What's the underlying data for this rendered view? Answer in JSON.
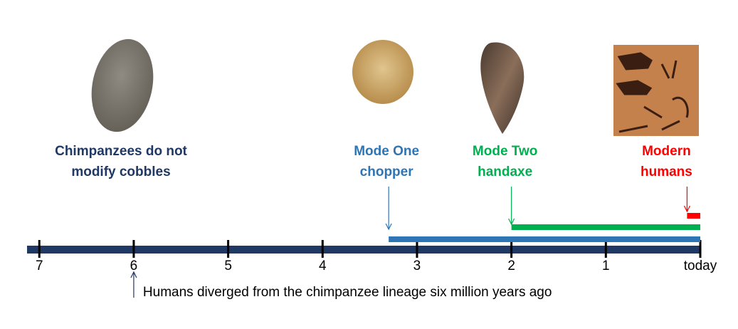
{
  "chart_data": {
    "type": "timeline",
    "xlim": [
      7.13,
      0
    ],
    "xticks": [
      7,
      6,
      5,
      4,
      3,
      2,
      1,
      {
        "value": 0,
        "label": "today"
      }
    ],
    "axis_color": "#1f3864",
    "note": {
      "label": [
        "Chimpanzees do not",
        "modify cobbles"
      ],
      "color": "#1f3864"
    },
    "periods": [
      {
        "label": [
          "Mode One",
          "chopper"
        ],
        "color": "#2e75b6",
        "start": 3.3,
        "end": 0
      },
      {
        "label": [
          "Mode Two",
          "handaxe"
        ],
        "color": "#00b050",
        "start": 2,
        "end": 0
      },
      {
        "label": [
          "Modern",
          "humans"
        ],
        "color": "#ff0000",
        "start": 0.14,
        "end": 0
      }
    ],
    "annotation": {
      "text": "Humans diverged from the chimpanzee lineage six million years ago",
      "at": 6,
      "color": "#1f3864"
    }
  }
}
